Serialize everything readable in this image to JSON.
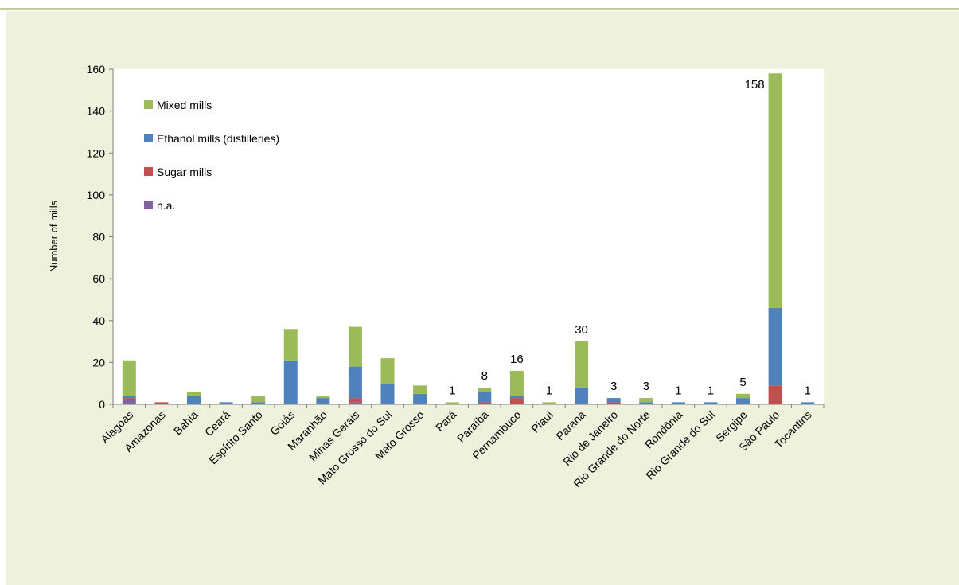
{
  "chart_data": {
    "type": "bar",
    "stacked": true,
    "title": "",
    "xlabel": "",
    "ylabel": "Number of mills",
    "ylim": [
      0,
      160
    ],
    "yticks": [
      0,
      20,
      40,
      60,
      80,
      100,
      120,
      140,
      160
    ],
    "grid": false,
    "legend_position": "top-left",
    "categories": [
      "Alagoas",
      "Amazonas",
      "Bahia",
      "Ceará",
      "Espírito Santo",
      "Goiás",
      "Maranhão",
      "Minas Gerais",
      "Mato Grosso do Sul",
      "Mato Grosso",
      "Pará",
      "Paraíba",
      "Pernambuco",
      "Piauí",
      "Paraná",
      "Rio de Janeiro",
      "Rio Grande do Norte",
      "Rondônia",
      "Rio Grande do Sul",
      "Sergipe",
      "São Paulo",
      "Tocantins"
    ],
    "series": [
      {
        "name": "n.a.",
        "color": "#8064a2",
        "values": [
          2,
          0,
          0,
          0,
          0,
          0,
          0,
          1,
          0,
          0,
          0,
          0,
          0,
          0,
          0,
          0,
          0,
          0,
          0,
          0,
          0,
          0
        ]
      },
      {
        "name": "Sugar mills",
        "color": "#c0504d",
        "values": [
          1,
          1,
          0,
          0,
          0,
          0,
          0,
          2,
          0,
          0,
          0,
          1,
          3,
          0,
          0,
          1,
          0,
          0,
          0,
          0,
          9,
          0
        ]
      },
      {
        "name": "Ethanol mills (distilleries)",
        "color": "#4f81bd",
        "values": [
          1,
          0,
          4,
          1,
          1,
          21,
          3,
          15,
          10,
          5,
          0,
          5,
          1,
          0,
          8,
          2,
          1,
          1,
          1,
          3,
          37,
          1
        ]
      },
      {
        "name": "Mixed mills",
        "color": "#9bbb59",
        "values": [
          17,
          0,
          2,
          0,
          3,
          15,
          1,
          19,
          12,
          4,
          1,
          2,
          12,
          1,
          22,
          0,
          2,
          0,
          0,
          2,
          112,
          0
        ]
      }
    ],
    "legend_order": [
      "Mixed mills",
      "Ethanol mills (distilleries)",
      "Sugar mills",
      "n.a."
    ],
    "data_labels": [
      {
        "category": "Pará",
        "label": "1"
      },
      {
        "category": "Paraíba",
        "label": "8"
      },
      {
        "category": "Pernambuco",
        "label": "16"
      },
      {
        "category": "Piauí",
        "label": "1"
      },
      {
        "category": "Paraná",
        "label": "30"
      },
      {
        "category": "Rio de Janeiro",
        "label": "3"
      },
      {
        "category": "Rio Grande do Norte",
        "label": "3"
      },
      {
        "category": "Rondônia",
        "label": "1"
      },
      {
        "category": "Rio Grande do Sul",
        "label": "1"
      },
      {
        "category": "Sergipe",
        "label": "5"
      },
      {
        "category": "São Paulo",
        "label": "158"
      },
      {
        "category": "Tocantins",
        "label": "1"
      }
    ]
  }
}
